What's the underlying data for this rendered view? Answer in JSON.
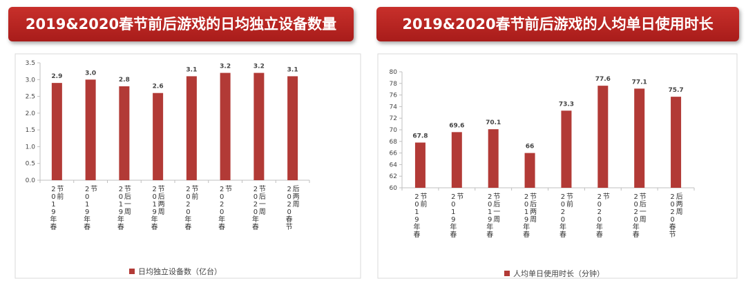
{
  "chart_data": [
    {
      "type": "bar",
      "title": "2019&2020春节前后游戏的日均独立设备数量",
      "categories": [
        "2019年春节前",
        "2019年春节",
        "2019年春节后一周",
        "2019年春节后两周",
        "2020年春节前",
        "2020年春节",
        "2020年春节后一周",
        "2020春节后两周"
      ],
      "series": [
        {
          "name": "日均独立设备数（亿台）",
          "values": [
            2.9,
            3.0,
            2.8,
            2.6,
            3.1,
            3.2,
            3.2,
            3.1
          ],
          "labels": [
            "2.9",
            "3.0",
            "2.8",
            "2.6",
            "3.1",
            "3.2",
            "3.2",
            "3.1"
          ]
        }
      ],
      "ylim": [
        0,
        3.5
      ],
      "yticks": [
        "0.0",
        "0.5",
        "1.0",
        "1.5",
        "2.0",
        "2.5",
        "3.0",
        "3.5"
      ],
      "legend_position": "bottom",
      "bar_color": "#b23a36",
      "grid": false
    },
    {
      "type": "bar",
      "title": "2019&2020春节前后游戏的人均单日使用时长",
      "categories": [
        "2019年春节前",
        "2019年春节",
        "2019年春节后一周",
        "2019年春节后两周",
        "2020年春节前",
        "2020年春节",
        "2020年春节后一周",
        "2020春节后两周"
      ],
      "series": [
        {
          "name": "人均单日使用时长（分钟）",
          "values": [
            67.8,
            69.6,
            70.1,
            66,
            73.3,
            77.6,
            77.1,
            75.7
          ],
          "labels": [
            "67.8",
            "69.6",
            "70.1",
            "66",
            "73.3",
            "77.6",
            "77.1",
            "75.7"
          ]
        }
      ],
      "ylim": [
        60,
        80
      ],
      "yticks": [
        "60",
        "62",
        "64",
        "66",
        "68",
        "70",
        "72",
        "74",
        "76",
        "78",
        "80"
      ],
      "legend_position": "bottom",
      "bar_color": "#b23a36",
      "grid": false
    }
  ]
}
